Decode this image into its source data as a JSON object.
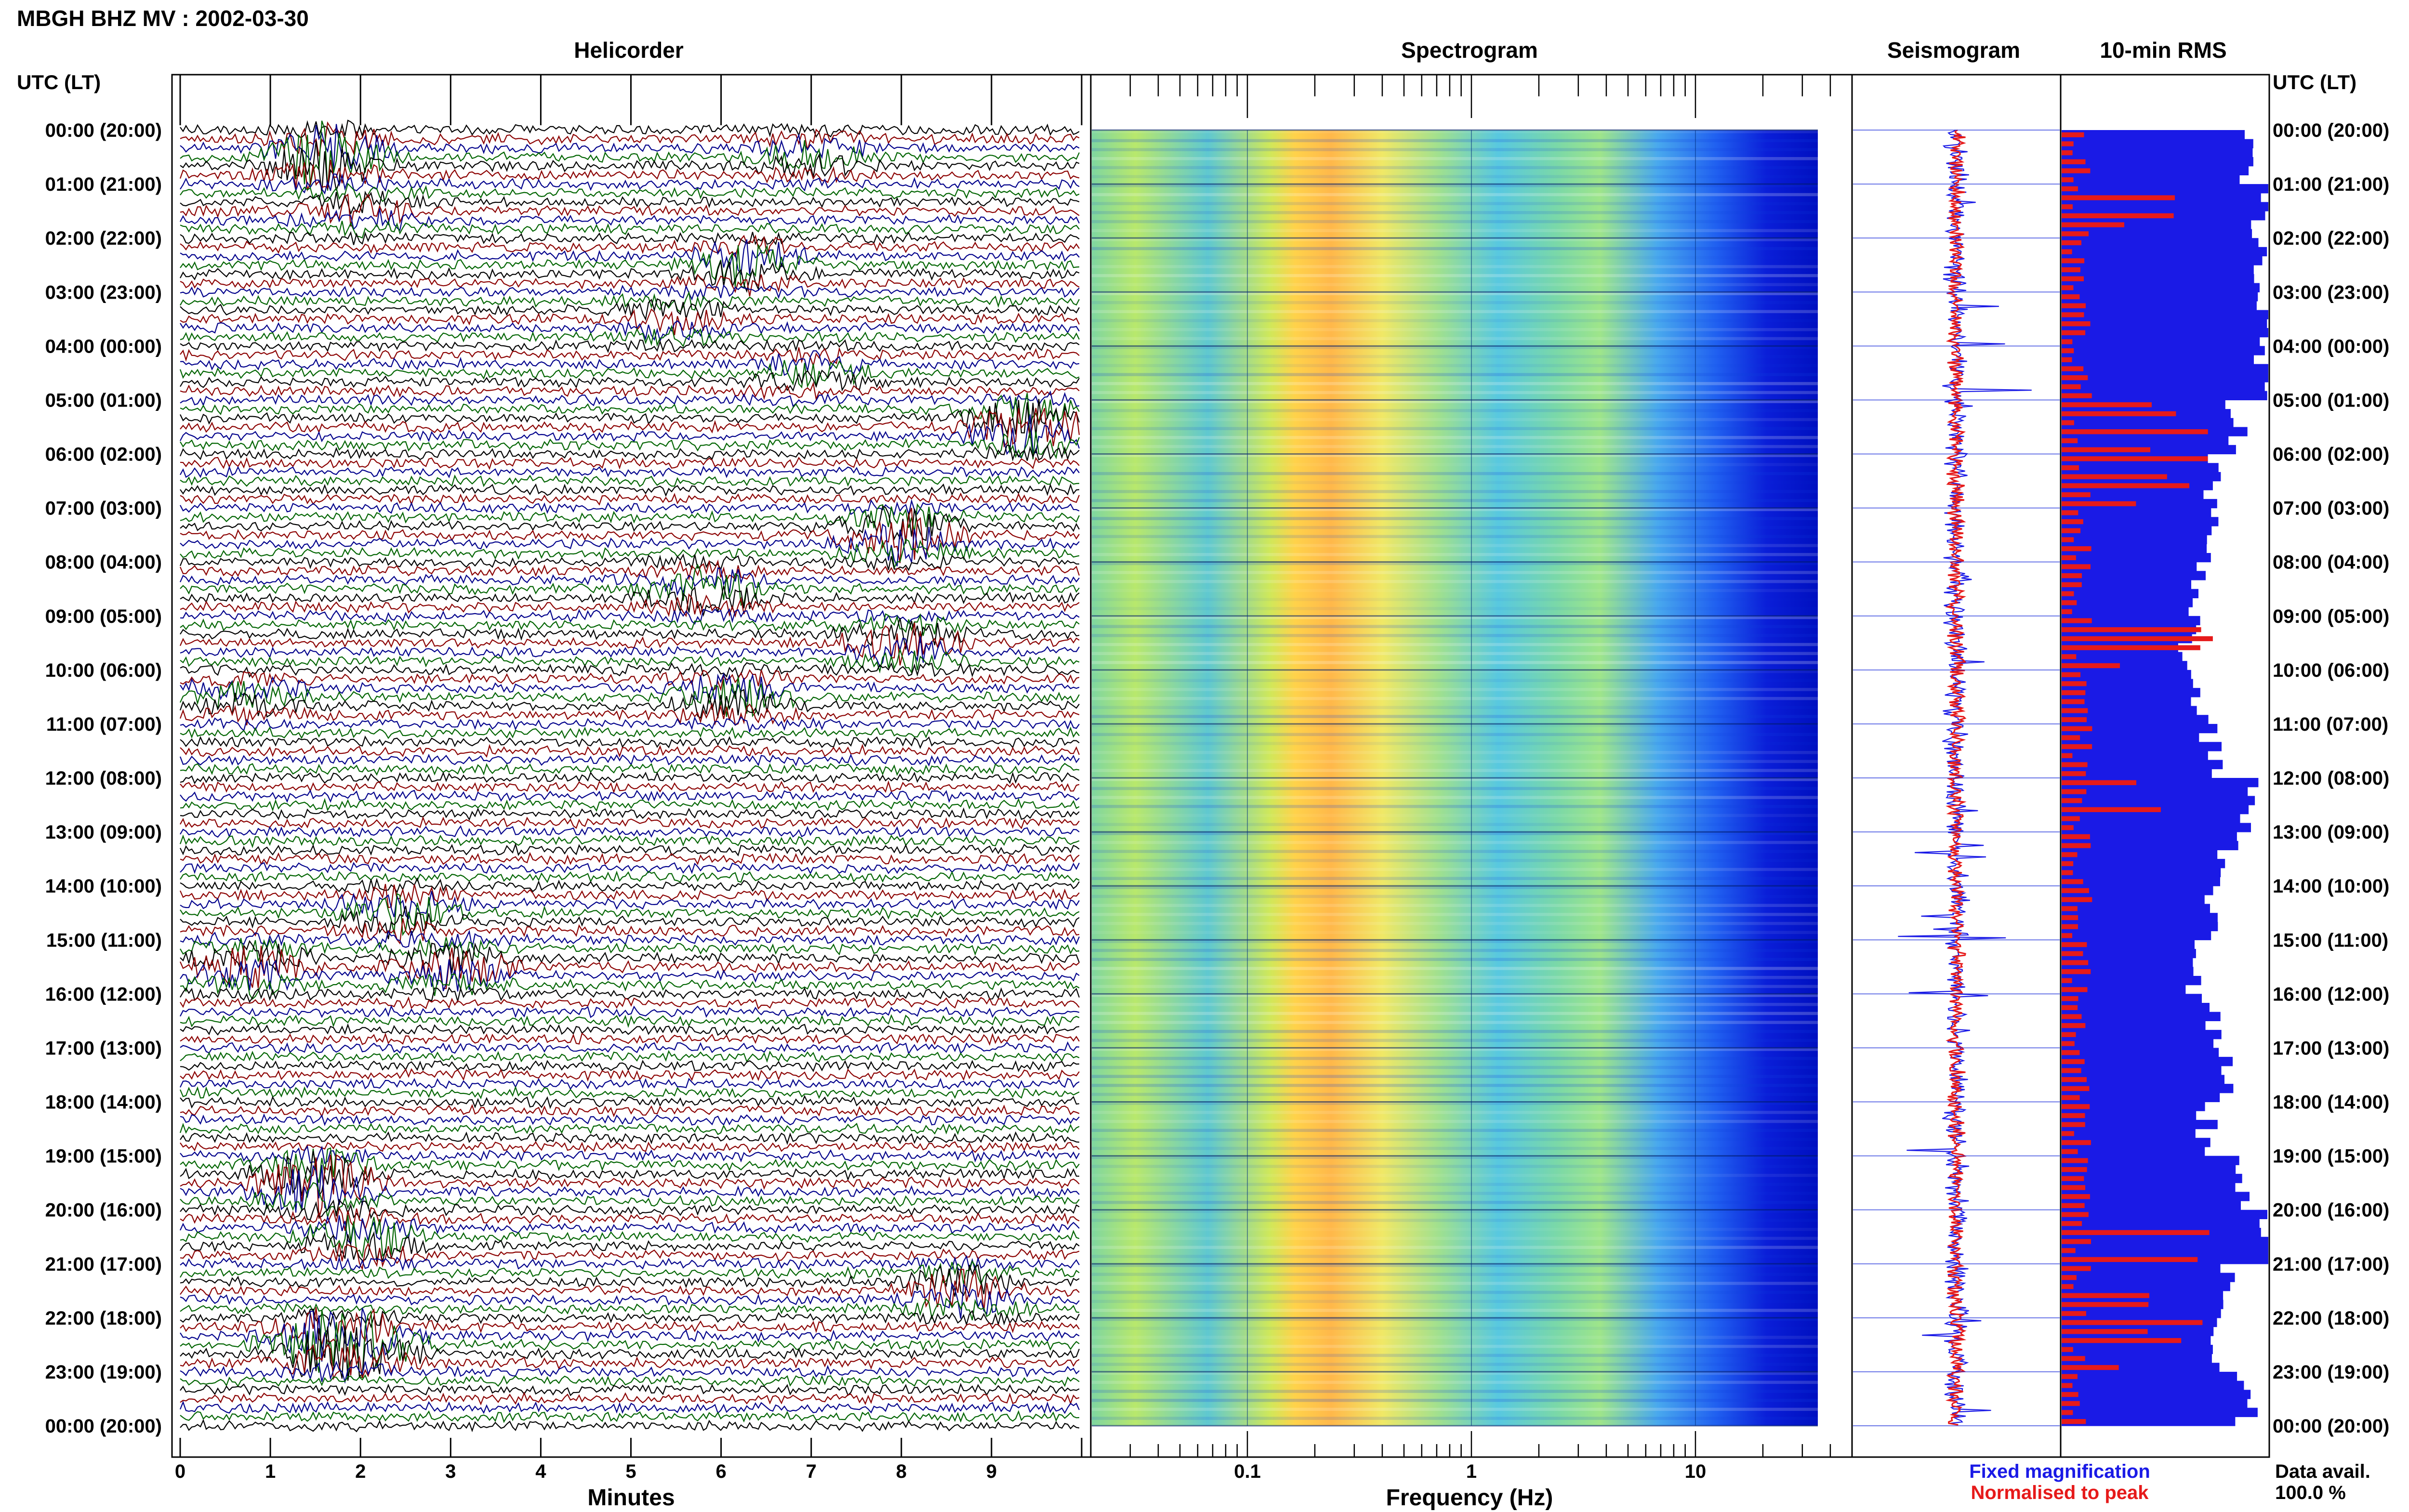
{
  "header": {
    "station": "MBGH BHZ MV",
    "date": "2002-03-30",
    "title_full": "MBGH BHZ MV : 2002-03-30"
  },
  "panels": {
    "helicorder_title": "Helicorder",
    "spectrogram_title": "Spectrogram",
    "seismogram_title": "Seismogram",
    "rms_title": "10-min RMS"
  },
  "time_axis_label": "UTC (LT)",
  "hour_labels": [
    "00:00 (20:00)",
    "01:00 (21:00)",
    "02:00 (22:00)",
    "03:00 (23:00)",
    "04:00 (00:00)",
    "05:00 (01:00)",
    "06:00 (02:00)",
    "07:00 (03:00)",
    "08:00 (04:00)",
    "09:00 (05:00)",
    "10:00 (06:00)",
    "11:00 (07:00)",
    "12:00 (08:00)",
    "13:00 (09:00)",
    "14:00 (10:00)",
    "15:00 (11:00)",
    "16:00 (12:00)",
    "17:00 (13:00)",
    "18:00 (14:00)",
    "19:00 (15:00)",
    "20:00 (16:00)",
    "21:00 (17:00)",
    "22:00 (18:00)",
    "23:00 (19:00)",
    "00:00 (20:00)"
  ],
  "helicorder_xaxis": {
    "label": "Minutes",
    "ticks": [
      "0",
      "1",
      "2",
      "3",
      "4",
      "5",
      "6",
      "7",
      "8",
      "9"
    ]
  },
  "spectrogram_xaxis": {
    "label": "Frequency (Hz)",
    "ticks": [
      "0.1",
      "1",
      "10"
    ],
    "scale": "log"
  },
  "legend": {
    "fixed_label": "Fixed magnification",
    "normalised_label": "Normalised to peak",
    "fixed_color": "#1a1ae6",
    "normalised_color": "#e61a1a"
  },
  "availability": {
    "label": "Data avail.",
    "value": "100.0 %"
  },
  "colors": {
    "helicorder_traces": [
      "#000000",
      "#8b0000",
      "#00008b",
      "#006400"
    ],
    "rms_fill": "#1a1ae6",
    "rms_bars": "#e61a1a",
    "spectrogram_scale": [
      "#0000cc",
      "#0080ff",
      "#40e0d0",
      "#ffff33",
      "#ff8000",
      "#cc0000"
    ]
  },
  "chart_data": [
    {
      "type": "line",
      "title": "Helicorder",
      "xlabel": "Minutes",
      "xlim": [
        0,
        10
      ],
      "rows_per_hour": 6,
      "row_span_minutes": 10,
      "hours": 24,
      "event_bursts": [
        {
          "hour": 0,
          "minute": 1.6,
          "size": 5
        },
        {
          "hour": 0,
          "minute": 7.0,
          "size": 2
        },
        {
          "hour": 1,
          "minute": 2.0,
          "size": 2
        },
        {
          "hour": 2,
          "minute": 6.3,
          "size": 3
        },
        {
          "hour": 3,
          "minute": 5.5,
          "size": 2
        },
        {
          "hour": 4,
          "minute": 7.0,
          "size": 2
        },
        {
          "hour": 5,
          "minute": 9.4,
          "size": 4
        },
        {
          "hour": 7,
          "minute": 8.0,
          "size": 4
        },
        {
          "hour": 8,
          "minute": 5.8,
          "size": 3
        },
        {
          "hour": 9,
          "minute": 8.0,
          "size": 3
        },
        {
          "hour": 10,
          "minute": 0.7,
          "size": 2
        },
        {
          "hour": 10,
          "minute": 6.1,
          "size": 3
        },
        {
          "hour": 14,
          "minute": 2.4,
          "size": 3
        },
        {
          "hour": 15,
          "minute": 0.8,
          "size": 3
        },
        {
          "hour": 15,
          "minute": 3.0,
          "size": 3
        },
        {
          "hour": 19,
          "minute": 1.5,
          "size": 5
        },
        {
          "hour": 20,
          "minute": 2.0,
          "size": 3
        },
        {
          "hour": 21,
          "minute": 8.7,
          "size": 3
        },
        {
          "hour": 22,
          "minute": 2.0,
          "size": 4
        },
        {
          "hour": 22,
          "minute": 1.5,
          "size": 3
        }
      ]
    },
    {
      "type": "heatmap",
      "title": "Spectrogram",
      "xlabel": "Frequency (Hz)",
      "xscale": "log",
      "xlim": [
        0.02,
        50
      ],
      "max_frequency_with_data": 40,
      "energy_peak_hz": [
        0.2,
        0.45
      ],
      "secondary_energy_hz": [
        2,
        6
      ]
    },
    {
      "type": "line",
      "title": "Seismogram",
      "series": [
        {
          "name": "Fixed magnification",
          "color": "#1a1ae6"
        },
        {
          "name": "Normalised to peak",
          "color": "#e61a1a"
        }
      ]
    },
    {
      "type": "bar",
      "title": "10-min RMS",
      "blue_fill_per_hour": [
        0.92,
        0.97,
        0.95,
        0.98,
        0.98,
        0.85,
        0.72,
        0.7,
        0.66,
        0.62,
        0.68,
        0.72,
        0.9,
        0.8,
        0.72,
        0.62,
        0.72,
        0.78,
        0.7,
        0.9,
        0.98,
        0.8,
        0.75,
        0.9
      ],
      "red_peak_hours": [
        1,
        5,
        6,
        9,
        12,
        20,
        21,
        22
      ]
    }
  ]
}
